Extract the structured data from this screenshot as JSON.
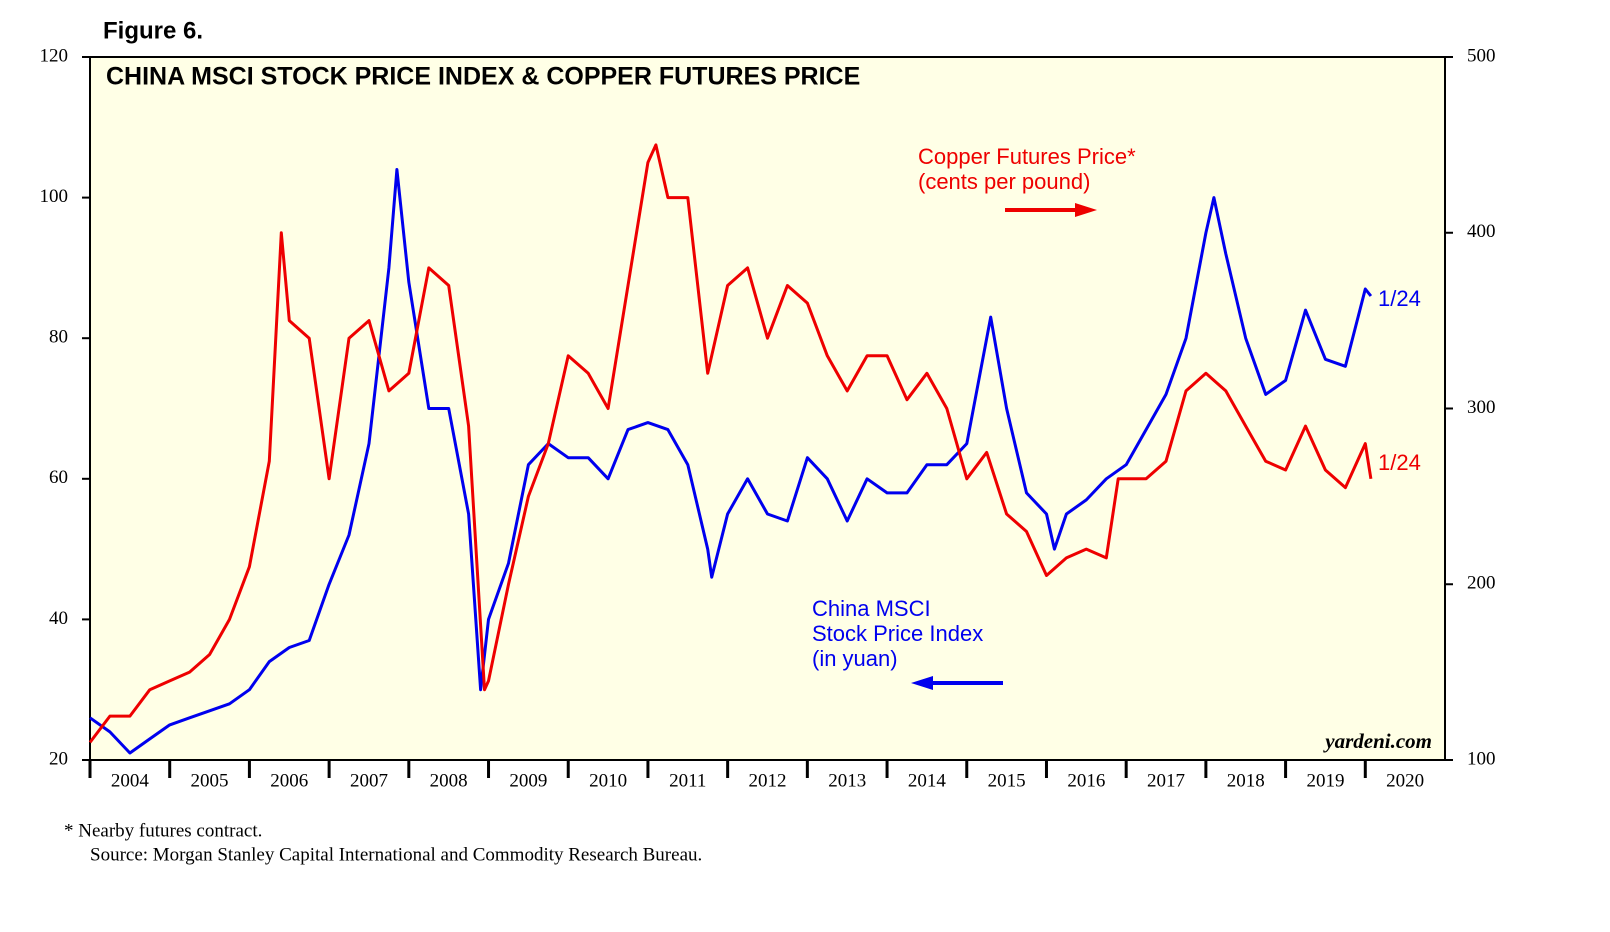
{
  "chart_data": {
    "type": "line",
    "figure_label": "Figure 6.",
    "title": "CHINA MSCI STOCK PRICE INDEX & COPPER FUTURES PRICE",
    "xlim": [
      2004,
      2021
    ],
    "xticks": [
      2004,
      2005,
      2006,
      2007,
      2008,
      2009,
      2010,
      2011,
      2012,
      2013,
      2014,
      2015,
      2016,
      2017,
      2018,
      2019,
      2020
    ],
    "ylim": [
      20,
      120
    ],
    "yticks": [
      20,
      40,
      60,
      80,
      100,
      120
    ],
    "y2lim": [
      100,
      500
    ],
    "y2ticks": [
      100,
      200,
      300,
      400,
      500
    ],
    "series": [
      {
        "name": "China MSCI Stock Price Index (in yuan)",
        "color": "#0000ee",
        "x": [
          2004.0,
          2004.25,
          2004.5,
          2004.75,
          2005.0,
          2005.25,
          2005.5,
          2005.75,
          2006.0,
          2006.25,
          2006.5,
          2006.75,
          2007.0,
          2007.25,
          2007.5,
          2007.75,
          2007.85,
          2008.0,
          2008.25,
          2008.5,
          2008.75,
          2008.9,
          2009.0,
          2009.25,
          2009.5,
          2009.75,
          2010.0,
          2010.25,
          2010.5,
          2010.75,
          2011.0,
          2011.25,
          2011.5,
          2011.75,
          2011.8,
          2012.0,
          2012.25,
          2012.5,
          2012.75,
          2013.0,
          2013.25,
          2013.5,
          2013.75,
          2014.0,
          2014.25,
          2014.5,
          2014.75,
          2015.0,
          2015.3,
          2015.5,
          2015.75,
          2016.0,
          2016.1,
          2016.25,
          2016.5,
          2016.75,
          2017.0,
          2017.25,
          2017.5,
          2017.75,
          2018.0,
          2018.1,
          2018.25,
          2018.5,
          2018.75,
          2019.0,
          2019.25,
          2019.5,
          2019.75,
          2020.0,
          2020.07
        ],
        "values": [
          26,
          24,
          21,
          23,
          25,
          26,
          27,
          28,
          30,
          34,
          36,
          37,
          45,
          52,
          65,
          90,
          104,
          88,
          70,
          70,
          55,
          30,
          40,
          48,
          62,
          65,
          63,
          63,
          60,
          67,
          68,
          67,
          62,
          50,
          46,
          55,
          60,
          55,
          54,
          63,
          60,
          54,
          60,
          58,
          58,
          62,
          62,
          65,
          83,
          70,
          58,
          55,
          50,
          55,
          57,
          60,
          62,
          67,
          72,
          80,
          95,
          100,
          92,
          80,
          72,
          74,
          84,
          77,
          76,
          87,
          86
        ]
      },
      {
        "name": "Copper Futures Price* (cents per pound)",
        "color": "#ee0000",
        "axis": "y2",
        "x": [
          2004.0,
          2004.25,
          2004.5,
          2004.75,
          2005.0,
          2005.25,
          2005.5,
          2005.75,
          2006.0,
          2006.25,
          2006.4,
          2006.5,
          2006.75,
          2007.0,
          2007.25,
          2007.5,
          2007.75,
          2008.0,
          2008.25,
          2008.5,
          2008.75,
          2008.95,
          2009.0,
          2009.25,
          2009.5,
          2009.75,
          2010.0,
          2010.25,
          2010.5,
          2010.75,
          2011.0,
          2011.1,
          2011.25,
          2011.5,
          2011.75,
          2012.0,
          2012.25,
          2012.5,
          2012.75,
          2013.0,
          2013.25,
          2013.5,
          2013.75,
          2014.0,
          2014.25,
          2014.5,
          2014.75,
          2015.0,
          2015.25,
          2015.5,
          2015.75,
          2016.0,
          2016.25,
          2016.5,
          2016.75,
          2016.9,
          2017.0,
          2017.25,
          2017.5,
          2017.75,
          2018.0,
          2018.25,
          2018.5,
          2018.75,
          2019.0,
          2019.25,
          2019.5,
          2019.75,
          2020.0,
          2020.07
        ],
        "values": [
          110,
          125,
          125,
          140,
          145,
          150,
          160,
          180,
          210,
          270,
          400,
          350,
          340,
          260,
          340,
          350,
          310,
          320,
          380,
          370,
          290,
          140,
          145,
          200,
          250,
          280,
          330,
          320,
          300,
          370,
          440,
          450,
          420,
          420,
          320,
          370,
          380,
          340,
          370,
          360,
          330,
          310,
          330,
          330,
          305,
          320,
          300,
          260,
          275,
          240,
          230,
          205,
          215,
          220,
          215,
          260,
          260,
          260,
          270,
          310,
          320,
          310,
          290,
          270,
          265,
          290,
          265,
          255,
          280,
          260
        ]
      }
    ],
    "annotations": [
      {
        "lines": [
          "Copper Futures Price*",
          "(cents per pound)"
        ],
        "color": "#ee0000"
      },
      {
        "lines": [
          "China MSCI",
          "Stock Price Index",
          "(in yuan)"
        ],
        "color": "#0000ee"
      },
      {
        "lines": [
          "1/24"
        ],
        "color": "#0000ee"
      },
      {
        "lines": [
          "1/24"
        ],
        "color": "#ee0000"
      }
    ],
    "credit": "yardeni.com",
    "footnote": "*   Nearby futures contract.",
    "source": "Source: Morgan Stanley Capital International and Commodity Research Bureau."
  }
}
